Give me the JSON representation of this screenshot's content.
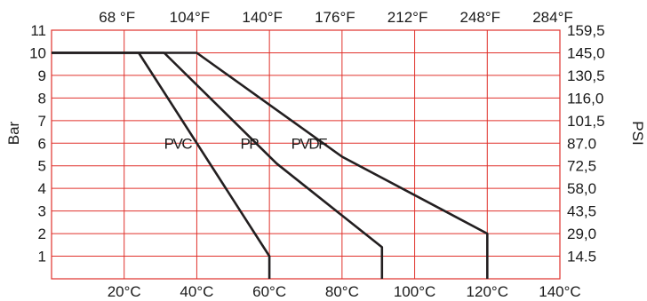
{
  "chart_data": {
    "type": "line",
    "title": "",
    "xlabel": "",
    "ylabel": "Bar",
    "y2label": "PSI",
    "xlim": [
      0,
      140
    ],
    "ylim": [
      0,
      11
    ],
    "grid": true,
    "grid_color": "#e0312b",
    "line_color": "#231f20",
    "x_ticks": [
      {
        "value": 20,
        "label": "20°C"
      },
      {
        "value": 40,
        "label": "40°C"
      },
      {
        "value": 60,
        "label": "60°C"
      },
      {
        "value": 80,
        "label": "80°C"
      },
      {
        "value": 100,
        "label": "100°C"
      },
      {
        "value": 120,
        "label": "120°C"
      },
      {
        "value": 140,
        "label": "140°C"
      }
    ],
    "x_top_ticks": [
      {
        "value": 20,
        "label": "68 °F"
      },
      {
        "value": 40,
        "label": "104°F"
      },
      {
        "value": 60,
        "label": "140°F"
      },
      {
        "value": 80,
        "label": "176°F"
      },
      {
        "value": 100,
        "label": "212°F"
      },
      {
        "value": 120,
        "label": "248°F"
      },
      {
        "value": 140,
        "label": "284°F"
      }
    ],
    "y_ticks": [
      {
        "value": 1,
        "label": "1"
      },
      {
        "value": 2,
        "label": "2"
      },
      {
        "value": 3,
        "label": "3"
      },
      {
        "value": 4,
        "label": "4"
      },
      {
        "value": 5,
        "label": "5"
      },
      {
        "value": 6,
        "label": "6"
      },
      {
        "value": 7,
        "label": "7"
      },
      {
        "value": 8,
        "label": "8"
      },
      {
        "value": 9,
        "label": "9"
      },
      {
        "value": 10,
        "label": "10"
      },
      {
        "value": 11,
        "label": "11"
      }
    ],
    "y_right_ticks": [
      {
        "value": 1,
        "label": "14.5"
      },
      {
        "value": 2,
        "label": "29,0"
      },
      {
        "value": 3,
        "label": "43,5"
      },
      {
        "value": 4,
        "label": "58,0"
      },
      {
        "value": 5,
        "label": "72,5"
      },
      {
        "value": 6,
        "label": "87.0"
      },
      {
        "value": 7,
        "label": "101,5"
      },
      {
        "value": 8,
        "label": "116,0"
      },
      {
        "value": 9,
        "label": "130,5"
      },
      {
        "value": 10,
        "label": "145,0"
      },
      {
        "value": 11,
        "label": "159,5"
      }
    ],
    "series": [
      {
        "name": "PVC",
        "label_at": [
          31,
          6.0
        ],
        "points": [
          [
            0,
            10
          ],
          [
            24,
            10
          ],
          [
            60,
            1
          ],
          [
            60,
            0
          ]
        ]
      },
      {
        "name": "PP",
        "label_at": [
          52,
          6.0
        ],
        "points": [
          [
            0,
            10
          ],
          [
            31,
            10
          ],
          [
            62,
            5.1
          ],
          [
            91,
            1.4
          ],
          [
            91,
            0
          ]
        ]
      },
      {
        "name": "PVDF",
        "label_at": [
          66,
          6.0
        ],
        "points": [
          [
            0,
            10
          ],
          [
            40,
            10
          ],
          [
            80,
            5.4
          ],
          [
            120,
            2
          ],
          [
            120,
            0
          ]
        ]
      }
    ]
  }
}
